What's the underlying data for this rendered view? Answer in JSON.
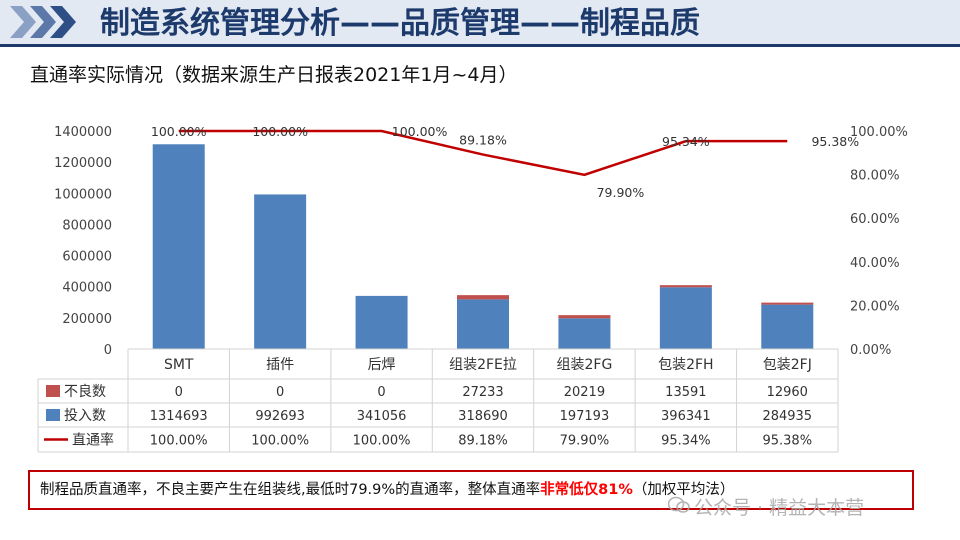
{
  "header": {
    "title": "制造系统管理分析——品质管理——制程品质"
  },
  "subtitle": "直通率实际情况（数据来源生产日报表2021年1月~4月）",
  "chart_data": {
    "type": "bar",
    "stacked": true,
    "categories": [
      "SMT",
      "插件",
      "后焊",
      "组装2FE拉",
      "组装2FG",
      "包装2FH",
      "包装2FJ"
    ],
    "series": [
      {
        "name": "不良数",
        "kind": "bar",
        "color": "#c0504d",
        "values": [
          0,
          0,
          0,
          27233,
          20219,
          13591,
          12960
        ],
        "labels": [
          "0",
          "0",
          "0",
          "27233",
          "20219",
          "13591",
          "12960"
        ]
      },
      {
        "name": "投入数",
        "kind": "bar",
        "color": "#4f81bd",
        "values": [
          1314693,
          992693,
          341056,
          318690,
          197193,
          396341,
          284935
        ],
        "labels": [
          "1314693",
          "992693",
          "341056",
          "318690",
          "197193",
          "396341",
          "284935"
        ]
      },
      {
        "name": "直通率",
        "kind": "line",
        "axis": "right",
        "color": "#c00000",
        "values": [
          100.0,
          100.0,
          100.0,
          89.18,
          79.9,
          95.34,
          95.38
        ],
        "labels": [
          "100.00%",
          "100.00%",
          "100.00%",
          "89.18%",
          "79.90%",
          "95.34%",
          "95.38%"
        ]
      }
    ],
    "y_left": {
      "min": 0,
      "max": 1400000,
      "ticks": [
        "0",
        "200000",
        "400000",
        "600000",
        "800000",
        "1000000",
        "1200000",
        "1400000"
      ]
    },
    "y_right": {
      "min": 0,
      "max": 100,
      "ticks": [
        "0.00%",
        "20.00%",
        "40.00%",
        "60.00%",
        "80.00%",
        "100.00%"
      ]
    },
    "data_table": true,
    "grid": false
  },
  "conclusion": {
    "text": "制程品质直通率，不良主要产生在组装线,最低时79.9%的直通率，整体直通率",
    "highlight": "非常低仅81%",
    "suffix": "（加权平均法）"
  },
  "watermark": {
    "icon": "wechat-icon",
    "text": "公众号 · 精益大本营"
  },
  "colors": {
    "title": "#1c3a6b",
    "header_band": "#e3e9f3",
    "accent": "#c00000"
  }
}
